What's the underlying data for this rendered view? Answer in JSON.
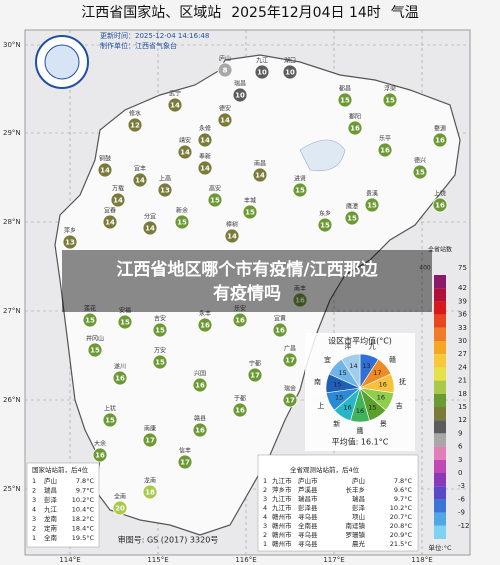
{
  "header": {
    "title": "江西省国家站、区域站",
    "date": "2025年12月04日 14时",
    "element": "气温"
  },
  "info": {
    "update_time": "更新时间：2025-12-04 14:16:48",
    "producer": "制作单位：江西省气象台"
  },
  "overlay_caption": [
    "江西省地区哪个市有疫情/江西那边",
    "有疫情吗"
  ],
  "latitude_labels": [
    "30°N",
    "29°N",
    "28°N",
    "27°N",
    "26°N",
    "25°N"
  ],
  "longitude_labels": [
    "114°E",
    "115°E",
    "116°E",
    "117°E",
    "118°E"
  ],
  "stations": [
    {
      "name": "庐山",
      "value": 8
    },
    {
      "name": "九江",
      "value": 10
    },
    {
      "name": "湖口",
      "value": 10
    },
    {
      "name": "瑞昌",
      "value": 10
    },
    {
      "name": "修水",
      "value": 12
    },
    {
      "name": "武宁",
      "value": 14
    },
    {
      "name": "德安",
      "value": 14
    },
    {
      "name": "永修",
      "value": 14
    },
    {
      "name": "都昌",
      "value": 15
    },
    {
      "name": "浮梁",
      "value": 15
    },
    {
      "name": "鄱阳",
      "value": 16
    },
    {
      "name": "乐平",
      "value": 16
    },
    {
      "name": "婺源",
      "value": 16
    },
    {
      "name": "德兴",
      "value": 15
    },
    {
      "name": "上饶",
      "value": 16
    },
    {
      "name": "铜鼓",
      "value": 14
    },
    {
      "name": "宜丰",
      "value": 14
    },
    {
      "name": "上高",
      "value": 13
    },
    {
      "name": "靖安",
      "value": 14
    },
    {
      "name": "奉新",
      "value": 14
    },
    {
      "name": "南昌",
      "value": 14
    },
    {
      "name": "进贤",
      "value": 15
    },
    {
      "name": "高安",
      "value": 15
    },
    {
      "name": "丰城",
      "value": 15
    },
    {
      "name": "万载",
      "value": 14
    },
    {
      "name": "宜春",
      "value": 14
    },
    {
      "name": "分宜",
      "value": 14
    },
    {
      "name": "新余",
      "value": 15
    },
    {
      "name": "樟树",
      "value": 14
    },
    {
      "name": "东乡",
      "value": 15
    },
    {
      "name": "鹰潭",
      "value": 15
    },
    {
      "name": "贵溪",
      "value": 15
    },
    {
      "name": "萍乡",
      "value": 13
    },
    {
      "name": "莲花",
      "value": 15
    },
    {
      "name": "安福",
      "value": 15
    },
    {
      "name": "吉安",
      "value": 15
    },
    {
      "name": "永丰",
      "value": 16
    },
    {
      "name": "乐安",
      "value": 16
    },
    {
      "name": "宜黄",
      "value": 16
    },
    {
      "name": "南丰",
      "value": 16
    },
    {
      "name": "广昌",
      "value": 17
    },
    {
      "name": "宁都",
      "value": 17
    },
    {
      "name": "兴国",
      "value": 16
    },
    {
      "name": "井冈山",
      "value": 15
    },
    {
      "name": "遂川",
      "value": 16
    },
    {
      "name": "万安",
      "value": 15
    },
    {
      "name": "赣县",
      "value": 16
    },
    {
      "name": "于都",
      "value": 16
    },
    {
      "name": "瑞金",
      "value": 17
    },
    {
      "name": "南康",
      "value": 17
    },
    {
      "name": "上犹",
      "value": 15
    },
    {
      "name": "大余",
      "value": 16
    },
    {
      "name": "信丰",
      "value": 17
    },
    {
      "name": "龙南",
      "value": 18
    },
    {
      "name": "全南",
      "value": 20
    }
  ],
  "colorbar": {
    "title": "全省站数",
    "count": "400",
    "top": "75",
    "ticks": [
      42,
      39,
      36,
      33,
      30,
      27,
      24,
      21,
      18,
      15,
      12,
      9,
      6,
      3,
      0,
      -3,
      -6,
      -9,
      -12
    ],
    "colors": [
      "#8b1a6b",
      "#b0103a",
      "#d7191c",
      "#e8461e",
      "#f07b28",
      "#f5a623",
      "#f9c83a",
      "#e6e04a",
      "#a9c94a",
      "#6b9a33",
      "#7a7a3a",
      "#5c5c5c",
      "#a8a8a8",
      "#e37fb8",
      "#c048b5",
      "#8a3ab8",
      "#5a4ac7",
      "#3b74d6",
      "#4fa7e6",
      "#7fd3f0"
    ],
    "unit": "单位:°C"
  },
  "national_ranking": {
    "title": "国家站站前，后4位",
    "rows": [
      [
        "1",
        "庐山",
        "7.8°C"
      ],
      [
        "2",
        "瑞昌",
        "9.7°C"
      ],
      [
        "3",
        "彭泽",
        "10.2°C"
      ],
      [
        "4",
        "九江",
        "10.4°C"
      ],
      [
        "3",
        "龙南",
        "18.2°C"
      ],
      [
        "2",
        "定南",
        "18.4°C"
      ],
      [
        "1",
        "全南",
        "19.5°C"
      ]
    ]
  },
  "provincial_ranking": {
    "title": "全省观测站站前，后4位",
    "rows": [
      [
        "1",
        "九江市",
        "庐山市",
        "庐山",
        "7.8°C"
      ],
      [
        "2",
        "萍乡市",
        "芦溪县",
        "长丰乡",
        "9.6°C"
      ],
      [
        "3",
        "九江市",
        "瑞昌市",
        "瑞昌",
        "9.7°C"
      ],
      [
        "4",
        "九江市",
        "彭泽县",
        "彭泽",
        "10.2°C"
      ],
      [
        "4",
        "赣州市",
        "寻乌县",
        "项山",
        "20.7°C"
      ],
      [
        "3",
        "赣州市",
        "全南县",
        "南迳镇",
        "20.8°C"
      ],
      [
        "2",
        "赣州市",
        "寻乌县",
        "罗珊镇",
        "20.9°C"
      ],
      [
        "1",
        "赣州市",
        "寻乌县",
        "晨光",
        "21.5°C"
      ]
    ]
  },
  "city_average": {
    "title": "设区市平均值(°C)",
    "cities": [
      "九",
      "赣",
      "抚",
      "吉",
      "景",
      "鹰",
      "新",
      "上",
      "南",
      "宜",
      "萍"
    ],
    "values": [
      "13",
      "17",
      "16",
      "16",
      "15",
      "16",
      "16",
      "15",
      "15",
      "15",
      "14"
    ],
    "average": "平均值: 16.1°C"
  },
  "map_review": "审图号: GS (2017) 3320号"
}
